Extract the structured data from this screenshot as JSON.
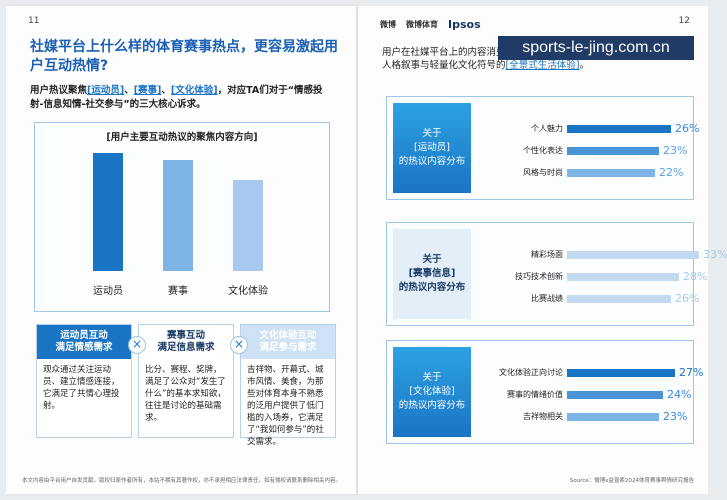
{
  "left_page": {
    "page_number": "11",
    "title": "社媒平台上什么样的体育赛事热点，更容易激起用户互动热情?",
    "intro_prefix": "用户热议聚焦",
    "intro_hl1": "[运动员]",
    "intro_sep1": "、",
    "intro_hl2": "[赛事]",
    "intro_sep2": "、",
    "intro_hl3": "[文化体验]",
    "intro_suffix": "，对应TA们对于“情感投射-信息知情-社交参与”的三大核心诉求。",
    "footnote": "本文内容由平台用户自发贡献，版权归原作者所有，本站不拥有其著作权，亦不承担相应法律责任。如有侵权请联系删除相关内容。"
  },
  "chart_data": [
    {
      "type": "bar",
      "title": "[用户主要互动热议的聚焦内容方向]",
      "categories": [
        "运动员",
        "赛事",
        "文化体验"
      ],
      "values": [
        100,
        94,
        77
      ],
      "colors": [
        "#1a74c4",
        "#7fb4e6",
        "#a9c8ef"
      ]
    },
    {
      "type": "bar",
      "orientation": "horizontal",
      "title": "关于[运动员]的热议内容分布",
      "categories": [
        "个人魅力",
        "个性化表达",
        "风格与时尚"
      ],
      "values": [
        26,
        23,
        22
      ],
      "value_labels": [
        "26%",
        "23%",
        "22%"
      ]
    },
    {
      "type": "bar",
      "orientation": "horizontal",
      "title": "关于[赛事信息]的热议内容分布",
      "categories": [
        "精彩场面",
        "技巧技术创新",
        "比赛战绩"
      ],
      "values": [
        33,
        28,
        26
      ],
      "value_labels": [
        "33%",
        "28%",
        "26%"
      ]
    },
    {
      "type": "bar",
      "orientation": "horizontal",
      "title": "关于[文化体验]的热议内容分布",
      "categories": [
        "文化体验正向讨论",
        "赛事的情绪价值",
        "吉祥物相关"
      ],
      "values": [
        27,
        24,
        23
      ],
      "value_labels": [
        "27%",
        "24%",
        "23%"
      ]
    }
  ],
  "cards": [
    {
      "head": "运动员互动\n满足情感需求",
      "body": "观众通过关注运动员、建立情感连接，它满足了共情心理投射。",
      "style": "dark"
    },
    {
      "head": "赛事互动\n满足信息需求",
      "body": "比分、赛程、奖牌，满足了公众对“发生了什么”的基本求知欲，往往是讨论的基础需求。",
      "style": "white"
    },
    {
      "head": "文化体验互动\n满足参与需求",
      "body": "吉祥物、开幕式、城市风情、美食，为那些对体育本身不熟悉的泛用户提供了低门槛的入场券，它满足了“我如何参与”的社交需求。",
      "style": "light"
    }
  ],
  "x_symbol": "×",
  "right_page": {
    "page_number": "12",
    "logo1": "微博",
    "logo2": "微博体育",
    "logo3": "Ipsos",
    "watermark": "sports-le-jing.com.cn",
    "intro_prefix": "用户在社媒平台上的内容消费从单一的赛事播报，进化为融合硬核资讯、人格叙事与轻量化文化符号的",
    "intro_hl": "[全景式生活体验]",
    "intro_suffix": "。",
    "footnote": "Source：微博x益普索2024体育赛事舆情研究报告",
    "panels": [
      {
        "head": "关于\n[运动员]\n的热议内容分布",
        "style": "dark"
      },
      {
        "head": "关于\n[赛事信息]\n的热议内容分布",
        "style": "light"
      },
      {
        "head": "关于\n[文化体验]\n的热议内容分布",
        "style": "dark"
      }
    ]
  },
  "colors": {
    "primary": "#1a74c4",
    "mid": "#7fb4e6",
    "light": "#a9c8ef",
    "pale": "#cfe1f4"
  }
}
